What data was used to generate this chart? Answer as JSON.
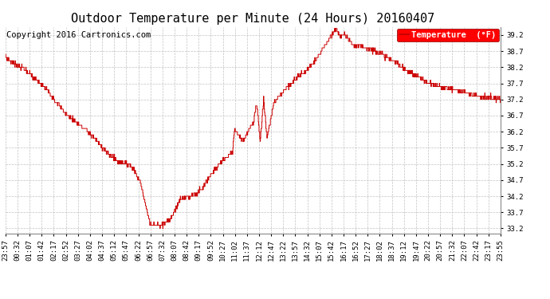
{
  "title": "Outdoor Temperature per Minute (24 Hours) 20160407",
  "copyright": "Copyright 2016 Cartronics.com",
  "legend_label": "Temperature  (°F)",
  "line_color": "#cc0000",
  "bg_color": "#ffffff",
  "plot_bg_color": "#ffffff",
  "grid_color": "#bbbbbb",
  "yticks": [
    33.2,
    33.7,
    34.2,
    34.7,
    35.2,
    35.7,
    36.2,
    36.7,
    37.2,
    37.7,
    38.2,
    38.7,
    39.2
  ],
  "ylim": [
    33.05,
    39.45
  ],
  "xtick_labels": [
    "23:57",
    "00:32",
    "01:07",
    "01:42",
    "02:17",
    "02:52",
    "03:27",
    "04:02",
    "04:37",
    "05:12",
    "05:47",
    "06:22",
    "06:57",
    "07:32",
    "08:07",
    "08:42",
    "09:17",
    "09:52",
    "10:27",
    "11:02",
    "11:37",
    "12:12",
    "12:47",
    "13:22",
    "13:57",
    "14:32",
    "15:07",
    "15:42",
    "16:17",
    "16:52",
    "17:27",
    "18:02",
    "18:37",
    "19:12",
    "19:47",
    "20:22",
    "20:57",
    "21:32",
    "22:07",
    "22:42",
    "23:17",
    "23:55"
  ],
  "num_points": 1440,
  "title_fontsize": 11,
  "axis_fontsize": 6.5,
  "copyright_fontsize": 7.5
}
